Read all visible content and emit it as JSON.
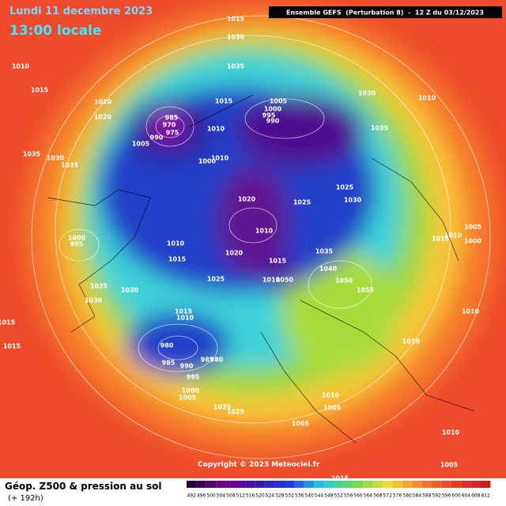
{
  "header": {
    "date": "Lundi 11 decembre 2023",
    "time": "13:00 locale",
    "model": "Ensemble GEFS  (Perturbation 8)  -  12 Z du 03/12/2023"
  },
  "copyright": "Copyright © 2023 Meteociel.fr",
  "footer": {
    "title": "Géop. Z500 & pression au sol",
    "lead": "(+ 192h)"
  },
  "legend": {
    "ticks": [
      492,
      496,
      500,
      504,
      508,
      512,
      516,
      520,
      524,
      528,
      532,
      536,
      540,
      544,
      548,
      552,
      556,
      560,
      564,
      568,
      572,
      576,
      580,
      584,
      588,
      592,
      596,
      600,
      604,
      608,
      612
    ]
  },
  "pressure_labels": [
    1015,
    1030,
    1035,
    1010,
    1015,
    1020,
    1020,
    1015,
    1005,
    1030,
    1010,
    1035,
    985,
    970,
    975,
    990,
    1005,
    1010,
    1000,
    995,
    990,
    1010,
    1000,
    1035,
    1030,
    1035,
    1020,
    1025,
    1025,
    1030,
    1010,
    1000,
    995,
    1010,
    1015,
    1020,
    1015,
    1035,
    1040,
    1005,
    1015,
    1010,
    1000,
    1025,
    1010,
    1050,
    1050,
    1055,
    1025,
    1030,
    1030,
    1015,
    1010,
    1015,
    1015,
    980,
    985,
    990,
    985,
    980,
    995,
    1010,
    1010,
    1000,
    1005,
    1010,
    1005,
    1020,
    1025,
    1005,
    1010,
    1005,
    1015
  ]
}
